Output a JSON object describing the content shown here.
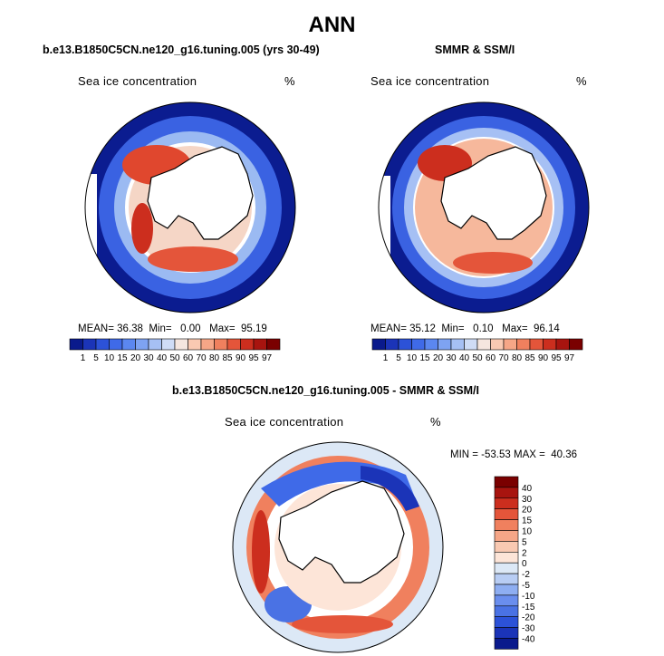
{
  "title": "ANN",
  "panels": [
    {
      "subtitle": "b.e13.B1850C5CN.ne120_g16.tuning.005 (yrs 30-49)",
      "variable": "Sea ice concentration",
      "units": "%",
      "stats": {
        "mean_label": "MEAN=",
        "mean": "36.38",
        "min_label": "Min=",
        "min": "0.00",
        "max_label": "Max=",
        "max": "95.19"
      }
    },
    {
      "subtitle": "SMMR & SSM/I",
      "variable": "Sea ice concentration",
      "units": "%",
      "stats": {
        "mean_label": "MEAN=",
        "mean": "35.12",
        "min_label": "Min=",
        "min": "0.10",
        "max_label": "Max=",
        "max": "96.14"
      }
    }
  ],
  "difference": {
    "subtitle": "b.e13.B1850C5CN.ne120_g16.tuning.005 - SMMR & SSM/I",
    "variable": "Sea ice concentration",
    "units": "%",
    "stats_text": "MIN = -53.53 MAX =  40.36"
  },
  "colorbar_horizontal": {
    "labels": [
      "1",
      "5",
      "10",
      "15",
      "20",
      "30",
      "40",
      "50",
      "60",
      "70",
      "80",
      "85",
      "90",
      "95",
      "97"
    ],
    "colors": [
      "#0a1a8c",
      "#1b34b8",
      "#2c52d8",
      "#3f6ae8",
      "#5b87f0",
      "#7ea3f2",
      "#a6c0f4",
      "#cfdcf6",
      "#f5e6df",
      "#f9c9b2",
      "#f6a687",
      "#f0805e",
      "#e4553a",
      "#cc2e1e",
      "#a8140f",
      "#7a0000"
    ]
  },
  "colorbar_vertical": {
    "labels": [
      "40",
      "30",
      "20",
      "15",
      "10",
      "5",
      "2",
      "0",
      "-2",
      "-5",
      "-10",
      "-15",
      "-20",
      "-30",
      "-40"
    ],
    "colors": [
      "#7a0000",
      "#a8140f",
      "#cc2e1e",
      "#e4553a",
      "#f0805e",
      "#f6a687",
      "#f9c9b2",
      "#fde5d8",
      "#dce8f6",
      "#b8cdf4",
      "#8eaef2",
      "#6a8eee",
      "#4a72e4",
      "#2c52d8",
      "#1b34b8",
      "#0a1a8c"
    ]
  }
}
